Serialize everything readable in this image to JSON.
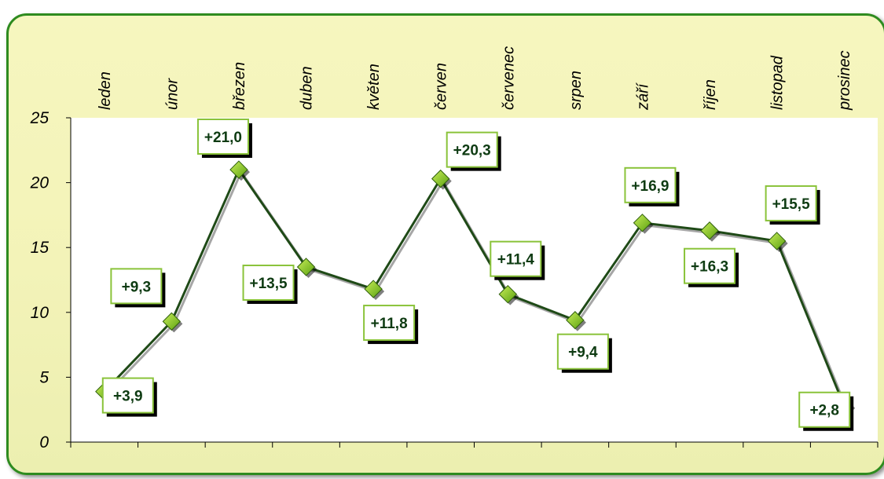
{
  "chart_data": {
    "type": "line",
    "categories": [
      "leden",
      "únor",
      "březen",
      "duben",
      "květen",
      "červen",
      "červenec",
      "srpen",
      "září",
      "říjen",
      "listopad",
      "prosinec"
    ],
    "series": [
      {
        "values": [
          3.9,
          9.3,
          21.0,
          13.5,
          11.8,
          20.3,
          11.4,
          9.4,
          16.9,
          16.3,
          15.5,
          2.8
        ],
        "labels": [
          "+3,9",
          "+9,3",
          "+21,0",
          "+13,5",
          "+11,8",
          "+20,3",
          "+11,4",
          "+9,4",
          "+16,9",
          "+16,3",
          "+15,5",
          "+2,8"
        ]
      }
    ],
    "y_ticks": [
      "0",
      "5",
      "10",
      "15",
      "20",
      "25"
    ],
    "ylim": [
      0,
      25
    ],
    "category_axis_position": "top",
    "grid": false,
    "colors": {
      "line": "#1f4a17",
      "marker": "#7fc31b",
      "plot_background": "#ffffff",
      "frame_background": "#f4f4ba",
      "frame_border": "#2e8b1f",
      "label_border": "#8ac33a",
      "label_text": "#0e3b12"
    }
  }
}
